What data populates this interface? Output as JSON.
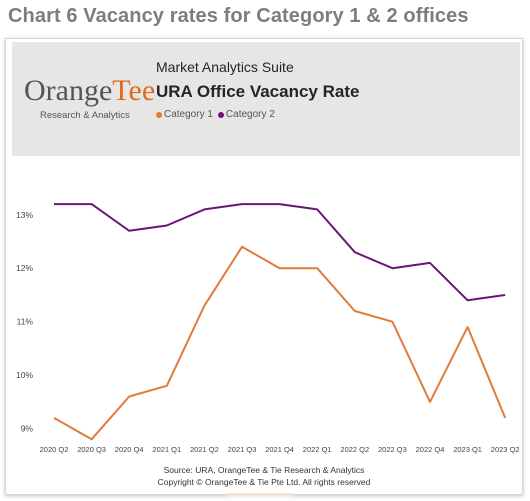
{
  "heading": "Chart 6 Vacancy rates for Category 1 & 2 offices",
  "logo": {
    "part1": "Orange",
    "part2": "Tee",
    "subtitle": "Research & Analytics"
  },
  "suite": "Market Analytics Suite",
  "footer": {
    "line1": "Source: URA, OrangeTee & Tie Research & Analytics",
    "line2": "Copyright © OrangeTee & Tie Pte Ltd. All rights reserved"
  },
  "colors": {
    "category1": "#e07b39",
    "category2": "#6b1677",
    "heading": "#7d7d7d",
    "header_bg": "#e6e6e6"
  },
  "chart_data": {
    "type": "line",
    "title": "URA Office Vacancy Rate",
    "categories": [
      "2020 Q2",
      "2020 Q3",
      "2020 Q4",
      "2021 Q1",
      "2021 Q2",
      "2021 Q3",
      "2021 Q4",
      "2022 Q1",
      "2022 Q2",
      "2022 Q3",
      "2022 Q4",
      "2023 Q1",
      "2023 Q2"
    ],
    "series": [
      {
        "name": "Category 1",
        "color": "#e07b39",
        "values": [
          9.2,
          8.8,
          9.6,
          9.8,
          11.3,
          12.4,
          12.0,
          12.0,
          11.2,
          11.0,
          9.5,
          10.9,
          9.2
        ]
      },
      {
        "name": "Category 2",
        "color": "#6b1677",
        "values": [
          13.2,
          13.2,
          12.7,
          12.8,
          13.1,
          13.2,
          13.2,
          13.1,
          12.3,
          12.0,
          12.1,
          11.4,
          11.5
        ]
      }
    ],
    "yticks": [
      "9%",
      "10%",
      "11%",
      "12%",
      "13%"
    ],
    "ylim": [
      8.6,
      13.8
    ],
    "legend_position": "top-left",
    "grid": false,
    "xlabel": "",
    "ylabel": ""
  }
}
